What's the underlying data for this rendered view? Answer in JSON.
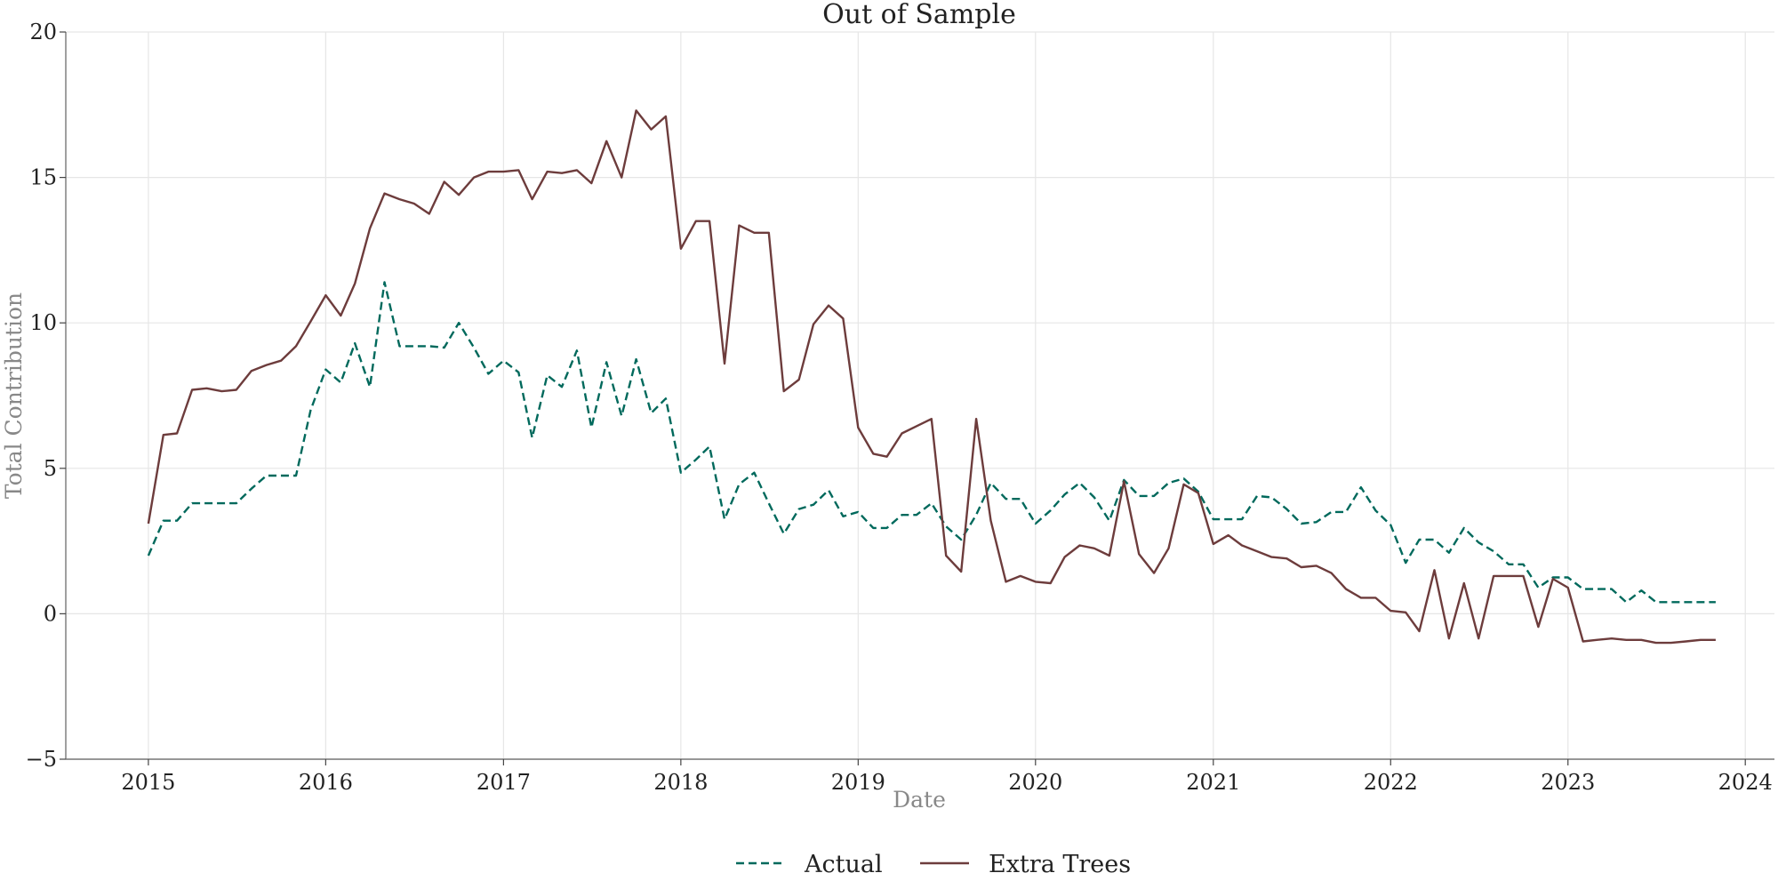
{
  "chart_data": {
    "type": "line",
    "title": "Out of Sample",
    "xlabel": "Date",
    "ylabel": "Total Contribution",
    "xlim": [
      "2014-07-15",
      "2024-03-01"
    ],
    "ylim": [
      -5,
      20
    ],
    "grid": true,
    "legend": "bottom-center",
    "x_ticks": [
      "2015-01-01",
      "2016-01-01",
      "2017-01-01",
      "2018-01-01",
      "2019-01-01",
      "2020-01-01",
      "2021-01-01",
      "2022-01-01",
      "2023-01-01",
      "2024-01-01"
    ],
    "x_tick_labels": [
      "2015",
      "2016",
      "2017",
      "2018",
      "2019",
      "2020",
      "2021",
      "2022",
      "2023",
      "2024"
    ],
    "y_ticks": [
      -5,
      0,
      5,
      10,
      15,
      20
    ],
    "y_tick_labels": [
      "−5",
      "0",
      "5",
      "10",
      "15",
      "20"
    ],
    "x": [
      "2015-01",
      "2015-02",
      "2015-03",
      "2015-04",
      "2015-05",
      "2015-06",
      "2015-07",
      "2015-08",
      "2015-09",
      "2015-10",
      "2015-11",
      "2015-12",
      "2016-01",
      "2016-02",
      "2016-03",
      "2016-04",
      "2016-05",
      "2016-06",
      "2016-07",
      "2016-08",
      "2016-09",
      "2016-10",
      "2016-11",
      "2016-12",
      "2017-01",
      "2017-02",
      "2017-03",
      "2017-04",
      "2017-05",
      "2017-06",
      "2017-07",
      "2017-08",
      "2017-09",
      "2017-10",
      "2017-11",
      "2017-12",
      "2018-01",
      "2018-02",
      "2018-03",
      "2018-04",
      "2018-05",
      "2018-06",
      "2018-07",
      "2018-08",
      "2018-09",
      "2018-10",
      "2018-11",
      "2018-12",
      "2019-01",
      "2019-02",
      "2019-03",
      "2019-04",
      "2019-05",
      "2019-06",
      "2019-07",
      "2019-08",
      "2019-09",
      "2019-10",
      "2019-11",
      "2019-12",
      "2020-01",
      "2020-02",
      "2020-03",
      "2020-04",
      "2020-05",
      "2020-06",
      "2020-07",
      "2020-08",
      "2020-09",
      "2020-10",
      "2020-11",
      "2020-12",
      "2021-01",
      "2021-02",
      "2021-03",
      "2021-04",
      "2021-05",
      "2021-06",
      "2021-07",
      "2021-08",
      "2021-09",
      "2021-10",
      "2021-11",
      "2021-12",
      "2022-01",
      "2022-02",
      "2022-03",
      "2022-04",
      "2022-05",
      "2022-06",
      "2022-07",
      "2022-08",
      "2022-09",
      "2022-10",
      "2022-11",
      "2022-12",
      "2023-01",
      "2023-02",
      "2023-03",
      "2023-04",
      "2023-05",
      "2023-06",
      "2023-07",
      "2023-08",
      "2023-09",
      "2023-10",
      "2023-11"
    ],
    "series": [
      {
        "name": "Actual",
        "color": "#00695c",
        "style": "dashed",
        "values": [
          2.0,
          3.2,
          3.2,
          3.8,
          3.8,
          3.8,
          3.8,
          4.3,
          4.75,
          4.75,
          4.75,
          7.0,
          8.4,
          7.95,
          9.3,
          7.8,
          11.4,
          9.2,
          9.2,
          9.2,
          9.15,
          10.0,
          9.15,
          8.25,
          8.7,
          8.3,
          6.05,
          8.2,
          7.8,
          9.05,
          6.4,
          8.65,
          6.8,
          8.75,
          6.9,
          7.4,
          4.85,
          5.3,
          5.75,
          3.25,
          4.45,
          4.85,
          3.8,
          2.75,
          3.6,
          3.75,
          4.25,
          3.35,
          3.5,
          2.95,
          2.95,
          3.4,
          3.4,
          3.8,
          3.0,
          2.55,
          3.4,
          4.5,
          3.95,
          3.95,
          3.1,
          3.55,
          4.1,
          4.5,
          4.0,
          3.2,
          4.6,
          4.05,
          4.05,
          4.5,
          4.65,
          4.2,
          3.25,
          3.25,
          3.25,
          4.05,
          4.0,
          3.6,
          3.1,
          3.15,
          3.5,
          3.5,
          4.35,
          3.55,
          3.05,
          1.75,
          2.55,
          2.55,
          2.1,
          2.95,
          2.45,
          2.15,
          1.7,
          1.7,
          0.9,
          1.25,
          1.25,
          0.85,
          0.85,
          0.85,
          0.4,
          0.8,
          0.4,
          0.4,
          0.4,
          0.4,
          0.4
        ]
      },
      {
        "name": "Extra Trees",
        "color": "#6d3c3c",
        "style": "solid",
        "values": [
          3.1,
          6.15,
          6.2,
          7.7,
          7.75,
          7.65,
          7.7,
          8.35,
          8.55,
          8.7,
          9.2,
          10.05,
          10.95,
          10.25,
          11.35,
          13.25,
          14.45,
          14.25,
          14.1,
          13.75,
          14.85,
          14.4,
          15.0,
          15.2,
          15.2,
          15.25,
          14.25,
          15.2,
          15.15,
          15.25,
          14.8,
          16.25,
          15.0,
          17.3,
          16.65,
          17.1,
          12.55,
          13.5,
          13.5,
          8.6,
          13.35,
          13.1,
          13.1,
          7.65,
          8.05,
          9.95,
          10.6,
          10.15,
          6.4,
          5.5,
          5.4,
          6.2,
          6.45,
          6.7,
          2.0,
          1.45,
          6.7,
          3.2,
          1.1,
          1.3,
          1.1,
          1.05,
          1.95,
          2.35,
          2.25,
          2.0,
          4.55,
          2.05,
          1.4,
          2.25,
          4.45,
          4.15,
          2.4,
          2.7,
          2.35,
          2.15,
          1.95,
          1.9,
          1.6,
          1.65,
          1.4,
          0.85,
          0.55,
          0.55,
          0.1,
          0.05,
          -0.6,
          1.5,
          -0.85,
          1.05,
          -0.85,
          1.3,
          1.3,
          1.3,
          -0.45,
          1.2,
          0.9,
          -0.95,
          -0.9,
          -0.85,
          -0.9,
          -0.9,
          -1.0,
          -1.0,
          -0.95,
          -0.9,
          -0.9
        ]
      }
    ]
  }
}
